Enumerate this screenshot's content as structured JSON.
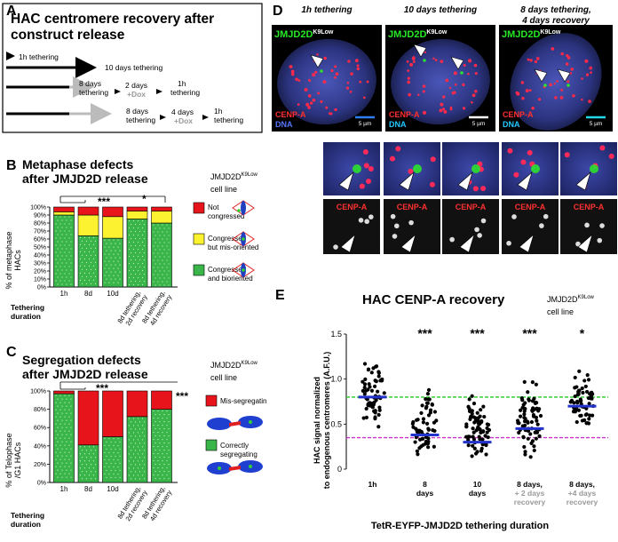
{
  "panels": {
    "A": "A",
    "B": "B",
    "C": "C",
    "D": "D",
    "E": "E"
  },
  "panel_a": {
    "title_line1": "HAC centromere recovery after",
    "title_line2": "construct release",
    "row1": "1h tethering",
    "row2": "10 days tethering",
    "row3": {
      "a": "8 days",
      "b": "tethering",
      "c": "2 days",
      "d": "+Dox",
      "e": "1h",
      "f": "tethering"
    },
    "row4": {
      "a": "8 days",
      "b": "tethering",
      "c": "4 days",
      "d": "+Dox",
      "e": "1h",
      "f": "tethering"
    }
  },
  "panel_b": {
    "title_line1": "Metaphase defects",
    "title_line2": "after JMJD2D release",
    "cellline_main": "JMJD2D",
    "cellline_sup": "K9Low",
    "cellline_sub": "cell line",
    "ylabel_line1": "% of metaphase",
    "ylabel_line2": "HACs",
    "sig1": "***",
    "sig2": "*",
    "xtitle_line1": "Tethering",
    "xtitle_line2": "duration",
    "legend": [
      {
        "line1": "Not",
        "line2": "congressed",
        "color": "#e8141b"
      },
      {
        "line1": "Congressed",
        "line2": "but mis-oriented",
        "color": "#fdf22f"
      },
      {
        "line1": "Congressed",
        "line2": "and bioriented",
        "color": "#39b54a"
      }
    ]
  },
  "panel_c": {
    "title_line1": "Segregation defects",
    "title_line2": "after JMJD2D release",
    "cellline_main": "JMJD2D",
    "cellline_sup": "K9Low",
    "cellline_sub": "cell line",
    "ylabel_line1": "% of Telophase",
    "ylabel_line2": "/G1 HACs",
    "sig1": "***",
    "sig2": "***",
    "xtitle_line1": "Tethering",
    "xtitle_line2": "duration",
    "legend": [
      {
        "line1": "Mis-segregating",
        "line2": "",
        "color": "#e8141b"
      },
      {
        "line1": "Correctly",
        "line2": "segregating",
        "color": "#39b54a"
      }
    ]
  },
  "panel_d": {
    "col_titles": [
      {
        "line1": "1h tethering",
        "line2": ""
      },
      {
        "line1": "10 days tethering",
        "line2": ""
      },
      {
        "line1": "8 days tethering,",
        "line2": "4 days recovery"
      }
    ],
    "jmjd_main": "JMJD2D",
    "jmjd_sup": "K9Low",
    "cenpa": "CENP-A",
    "dna": "DNA",
    "scale": "5 µm"
  },
  "panel_e": {
    "title": "HAC CENP-A recovery",
    "cellline_main": "JMJD2D",
    "cellline_sup": "K9Low",
    "cellline_sub": "cell line",
    "ylabel_line1": "HAC signal normalized",
    "ylabel_line2": "to endogenous centromeres (A.F.U.)",
    "xtitle": "TetR-EYFP-JMJD2D tethering duration",
    "ref_lines": [
      {
        "value": 0.8,
        "color": "#22cc22"
      },
      {
        "value": 0.35,
        "color": "#cc33cc"
      }
    ],
    "groups": [
      {
        "l1": "1h",
        "l2": "",
        "l3": "",
        "sig": "",
        "median": 0.8,
        "center": 0.82,
        "spread": 0.28,
        "n": 60
      },
      {
        "l1": "8",
        "l2": "days",
        "l3": "",
        "sig": "***",
        "median": 0.38,
        "center": 0.5,
        "spread": 0.3,
        "n": 60
      },
      {
        "l1": "10",
        "l2": "days",
        "l3": "",
        "sig": "***",
        "median": 0.3,
        "center": 0.42,
        "spread": 0.28,
        "n": 70
      },
      {
        "l1": "8 days,",
        "l2": "+ 2 days",
        "l3": "recovery",
        "sig": "***",
        "median": 0.45,
        "center": 0.55,
        "spread": 0.3,
        "n": 70
      },
      {
        "l1": "8 days,",
        "l2": "+4 days",
        "l3": "recovery",
        "sig": "*",
        "median": 0.7,
        "center": 0.72,
        "spread": 0.25,
        "n": 60
      }
    ]
  },
  "chart_data": [
    {
      "type": "bar",
      "stacked": true,
      "title": "Metaphase defects after JMJD2D release",
      "categories": [
        "1h",
        "8d",
        "10d",
        "8d tethering, 2d recovery",
        "8d tethering, 4d recovery"
      ],
      "ylabel": "% of metaphase HACs",
      "xlabel": "Tethering duration",
      "ylim": [
        0,
        100
      ],
      "yticks": [
        "0%",
        "10%",
        "20%",
        "30%",
        "40%",
        "50%",
        "60%",
        "70%",
        "80%",
        "90%",
        "100%"
      ],
      "series": [
        {
          "name": "Congressed and bioriented",
          "color": "#39b54a",
          "values": [
            90,
            64,
            61,
            85,
            80
          ]
        },
        {
          "name": "Congressed but mis-oriented",
          "color": "#fdf22f",
          "values": [
            4,
            26,
            27,
            10,
            15
          ]
        },
        {
          "name": "Not congressed",
          "color": "#e8141b",
          "values": [
            6,
            10,
            12,
            5,
            5
          ]
        }
      ]
    },
    {
      "type": "bar",
      "stacked": true,
      "title": "Segregation defects after JMJD2D release",
      "categories": [
        "1h",
        "8d",
        "10d",
        "8d tethering, 2d recovery",
        "8d tethering, 4d recovery"
      ],
      "ylabel": "% of Telophase /G1 HACs",
      "xlabel": "Tethering duration",
      "ylim": [
        0,
        100
      ],
      "yticks": [
        "0%",
        "20%",
        "40%",
        "60%",
        "80%",
        "100%"
      ],
      "series": [
        {
          "name": "Correctly segregating",
          "color": "#39b54a",
          "values": [
            97,
            41,
            50,
            72,
            80
          ]
        },
        {
          "name": "Mis-segregating",
          "color": "#e8141b",
          "values": [
            3,
            59,
            50,
            28,
            20
          ]
        }
      ]
    },
    {
      "type": "scatter",
      "title": "HAC CENP-A recovery",
      "categories": [
        "1h",
        "8 days",
        "10 days",
        "8 days, + 2 days recovery",
        "8 days, +4 days recovery"
      ],
      "ylabel": "HAC signal normalized to endogenous centromeres (A.F.U.)",
      "xlabel": "TetR-EYFP-JMJD2D tethering duration",
      "ylim": [
        0,
        1.5
      ],
      "yticks": [
        "0",
        "0.5",
        "1.0",
        "1.5"
      ],
      "medians": [
        0.8,
        0.38,
        0.3,
        0.45,
        0.7
      ]
    }
  ]
}
